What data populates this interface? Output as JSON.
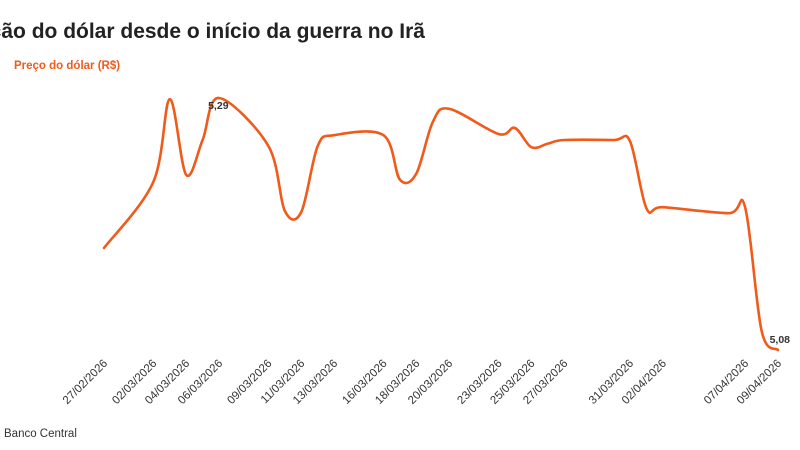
{
  "chart_data": {
    "type": "line",
    "title": "ação do dólar desde o início da guerra no Irã",
    "series_label": "Preço do dólar (R$)",
    "source": "Banco Central",
    "colors": {
      "line": "#f05a1a",
      "label_text": "#333333"
    },
    "x_tick_labels": [
      "27/02/2026",
      "02/03/2026",
      "04/03/2026",
      "06/03/2026",
      "09/03/2026",
      "11/03/2026",
      "13/03/2026",
      "16/03/2026",
      "18/03/2026",
      "20/03/2026",
      "23/03/2026",
      "25/03/2026",
      "27/03/2026",
      "31/03/2026",
      "02/04/2026",
      "07/04/2026",
      "09/04/2026"
    ],
    "x": [
      "27/02/2026",
      "02/03/2026",
      "03/03/2026",
      "04/03/2026",
      "05/03/2026",
      "06/03/2026",
      "09/03/2026",
      "10/03/2026",
      "11/03/2026",
      "12/03/2026",
      "13/03/2026",
      "16/03/2026",
      "17/03/2026",
      "18/03/2026",
      "19/03/2026",
      "20/03/2026",
      "23/03/2026",
      "24/03/2026",
      "25/03/2026",
      "26/03/2026",
      "27/03/2026",
      "30/03/2026",
      "31/03/2026",
      "01/04/2026",
      "02/04/2026",
      "06/04/2026",
      "07/04/2026",
      "08/04/2026",
      "09/04/2026"
    ],
    "series": [
      {
        "values": [
          5.165,
          5.22,
          5.289,
          5.226,
          5.255,
          5.29,
          5.25,
          5.196,
          5.195,
          5.25,
          5.259,
          5.259,
          5.222,
          5.227,
          5.27,
          5.281,
          5.26,
          5.265,
          5.249,
          5.252,
          5.255,
          5.255,
          5.254,
          5.198,
          5.199,
          5.194,
          5.199,
          5.096,
          5.08
        ]
      }
    ],
    "data_labels": [
      {
        "x": "06/03/2026",
        "text": "5,29"
      },
      {
        "x": "09/04/2026",
        "text": "5,08"
      }
    ],
    "ylim": [
      5.08,
      5.29
    ],
    "grid": false,
    "legend": "none"
  }
}
